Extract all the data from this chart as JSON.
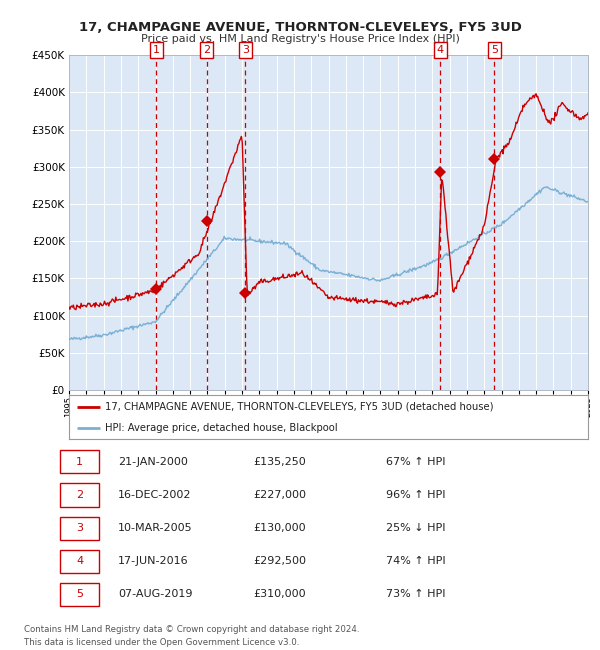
{
  "title": "17, CHAMPAGNE AVENUE, THORNTON-CLEVELEYS, FY5 3UD",
  "subtitle": "Price paid vs. HM Land Registry's House Price Index (HPI)",
  "bg_color": "#dce8f5",
  "sales": [
    {
      "num": 1,
      "date_x": 2000.05,
      "price": 135250
    },
    {
      "num": 2,
      "date_x": 2002.96,
      "price": 227000
    },
    {
      "num": 3,
      "date_x": 2005.19,
      "price": 130000
    },
    {
      "num": 4,
      "date_x": 2016.46,
      "price": 292500
    },
    {
      "num": 5,
      "date_x": 2019.59,
      "price": 310000
    }
  ],
  "hpi_line_color": "#7ab0d4",
  "price_line_color": "#cc0000",
  "marker_color": "#cc0000",
  "dashed_line_color": "#cc0000",
  "xlim": [
    1995,
    2025
  ],
  "ylim": [
    0,
    450000
  ],
  "yticks": [
    0,
    50000,
    100000,
    150000,
    200000,
    250000,
    300000,
    350000,
    400000,
    450000
  ],
  "footer_text": "Contains HM Land Registry data © Crown copyright and database right 2024.\nThis data is licensed under the Open Government Licence v3.0.",
  "legend_label_red": "17, CHAMPAGNE AVENUE, THORNTON-CLEVELEYS, FY5 3UD (detached house)",
  "legend_label_blue": "HPI: Average price, detached house, Blackpool",
  "table_rows": [
    [
      "1",
      "21-JAN-2000",
      "£135,250",
      "67% ↑ HPI"
    ],
    [
      "2",
      "16-DEC-2002",
      "£227,000",
      "96% ↑ HPI"
    ],
    [
      "3",
      "10-MAR-2005",
      "£130,000",
      "25% ↓ HPI"
    ],
    [
      "4",
      "17-JUN-2016",
      "£292,500",
      "74% ↑ HPI"
    ],
    [
      "5",
      "07-AUG-2019",
      "£310,000",
      "73% ↑ HPI"
    ]
  ]
}
